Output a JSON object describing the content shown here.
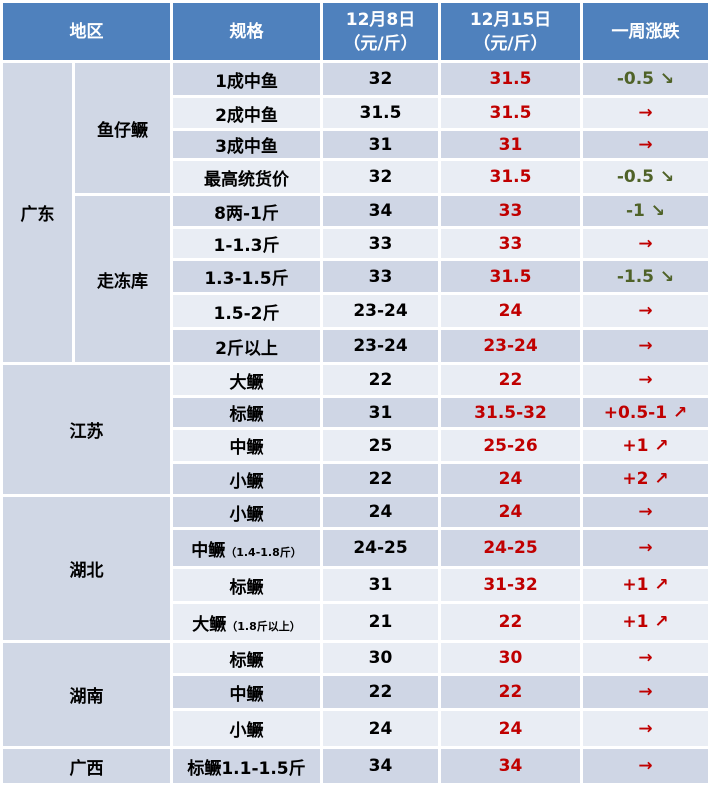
{
  "header": {
    "region": "地区",
    "spec": "规格",
    "date1": "12月8日",
    "date2": "12月15日",
    "unit": "（元/斤）",
    "change": "一周涨跌"
  },
  "colors": {
    "header_bg": "#4f81bd",
    "up": "#c00000",
    "down": "#4f6228",
    "price_new": "#c00000"
  },
  "rows": [
    {
      "region": "广东",
      "sub": "鱼仔鳜",
      "spec": "1成中鱼",
      "note": "",
      "p1": "32",
      "p2": "31.5",
      "chg": "-0.5 ↘",
      "trend": "down"
    },
    {
      "region": "广东",
      "sub": "鱼仔鳜",
      "spec": "2成中鱼",
      "note": "",
      "p1": "31.5",
      "p2": "31.5",
      "chg": "→",
      "trend": "flat"
    },
    {
      "region": "广东",
      "sub": "鱼仔鳜",
      "spec": "3成中鱼",
      "note": "",
      "p1": "31",
      "p2": "31",
      "chg": "→",
      "trend": "flat"
    },
    {
      "region": "广东",
      "sub": "鱼仔鳜",
      "spec": "最高统货价",
      "note": "",
      "p1": "32",
      "p2": "31.5",
      "chg": "-0.5 ↘",
      "trend": "down"
    },
    {
      "region": "广东",
      "sub": "走冻库",
      "spec": "8两-1斤",
      "note": "",
      "p1": "34",
      "p2": "33",
      "chg": "-1 ↘",
      "trend": "down"
    },
    {
      "region": "广东",
      "sub": "走冻库",
      "spec": "1-1.3斤",
      "note": "",
      "p1": "33",
      "p2": "33",
      "chg": "→",
      "trend": "flat"
    },
    {
      "region": "广东",
      "sub": "走冻库",
      "spec": "1.3-1.5斤",
      "note": "",
      "p1": "33",
      "p2": "31.5",
      "chg": "-1.5 ↘",
      "trend": "down"
    },
    {
      "region": "广东",
      "sub": "走冻库",
      "spec": "1.5-2斤",
      "note": "",
      "p1": "23-24",
      "p2": "24",
      "chg": "→",
      "trend": "flat"
    },
    {
      "region": "广东",
      "sub": "走冻库",
      "spec": "2斤以上",
      "note": "",
      "p1": "23-24",
      "p2": "23-24",
      "chg": "→",
      "trend": "flat"
    },
    {
      "region": "江苏",
      "spec": "大鳜",
      "note": "",
      "p1": "22",
      "p2": "22",
      "chg": "→",
      "trend": "flat"
    },
    {
      "region": "江苏",
      "spec": "标鳜",
      "note": "",
      "p1": "31",
      "p2": "31.5-32",
      "chg": "+0.5-1 ↗",
      "trend": "up"
    },
    {
      "region": "江苏",
      "spec": "中鳜",
      "note": "",
      "p1": "25",
      "p2": "25-26",
      "chg": "+1 ↗",
      "trend": "up"
    },
    {
      "region": "江苏",
      "spec": "小鳜",
      "note": "",
      "p1": "22",
      "p2": "24",
      "chg": "+2 ↗",
      "trend": "up"
    },
    {
      "region": "湖北",
      "spec": "小鳜",
      "note": "",
      "p1": "24",
      "p2": "24",
      "chg": "→",
      "trend": "flat"
    },
    {
      "region": "湖北",
      "spec": "中鳜",
      "note": "（1.4-1.8斤）",
      "p1": "24-25",
      "p2": "24-25",
      "chg": "→",
      "trend": "flat"
    },
    {
      "region": "湖北",
      "spec": "标鳜",
      "note": "",
      "p1": "31",
      "p2": "31-32",
      "chg": "+1 ↗",
      "trend": "up"
    },
    {
      "region": "湖北",
      "spec": "大鳜",
      "note": "（1.8斤以上）",
      "p1": "21",
      "p2": "22",
      "chg": "+1 ↗",
      "trend": "up"
    },
    {
      "region": "湖南",
      "spec": "标鳜",
      "note": "",
      "p1": "30",
      "p2": "30",
      "chg": "→",
      "trend": "flat"
    },
    {
      "region": "湖南",
      "spec": "中鳜",
      "note": "",
      "p1": "22",
      "p2": "22",
      "chg": "→",
      "trend": "flat"
    },
    {
      "region": "湖南",
      "spec": "小鳜",
      "note": "",
      "p1": "24",
      "p2": "24",
      "chg": "→",
      "trend": "flat"
    },
    {
      "region": "广西",
      "spec": "标鳜1.1-1.5斤",
      "note": "",
      "p1": "34",
      "p2": "34",
      "chg": "→",
      "trend": "flat"
    }
  ]
}
